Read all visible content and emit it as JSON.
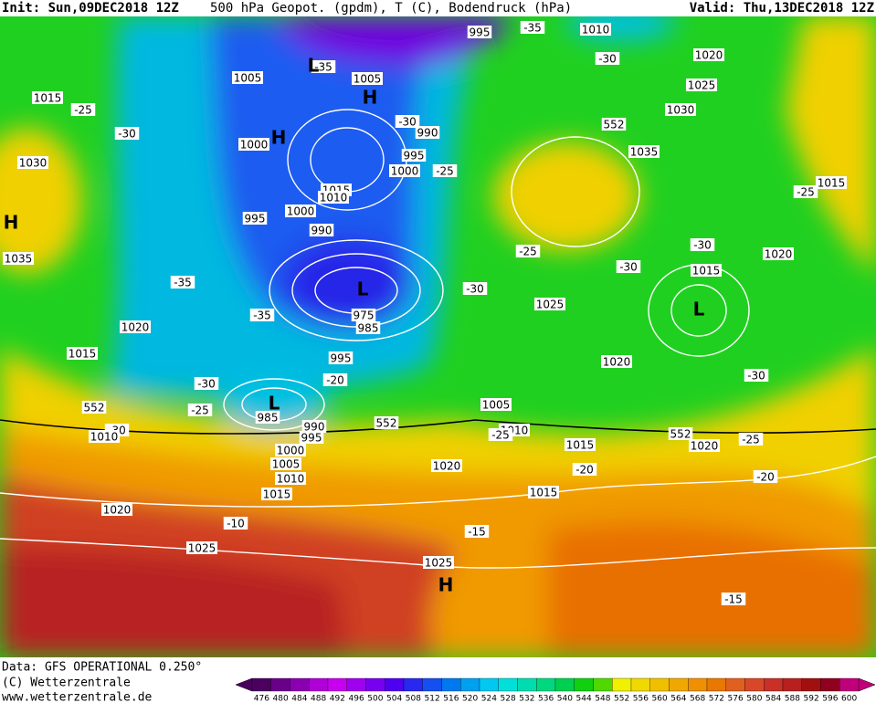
{
  "header": {
    "init": "Init: Sun,09DEC2018 12Z",
    "title": "500 hPa Geopot. (gpdm), T (C), Bodendruck (hPa)",
    "valid": "Valid: Thu,13DEC2018 12Z"
  },
  "footer": {
    "data": "Data: GFS OPERATIONAL 0.250°",
    "copyright": "(C) Wetterzentrale",
    "url": "www.wetterzentrale.de"
  },
  "map": {
    "labels": [
      "995",
      "-35",
      "1010",
      "-30",
      "1020",
      "1025",
      "1030",
      "552",
      "1035",
      "1015",
      "-25",
      "-30",
      "1020",
      "1015",
      "-30",
      "-25",
      "1025",
      "-30",
      "1020",
      "-30",
      "1005",
      "1010",
      "-25",
      "1015",
      "552",
      "1020",
      "-25",
      "-20",
      "-20",
      "1020",
      "1015",
      "-15",
      "1025",
      "-15",
      "-10",
      "1020",
      "1025",
      "1015",
      "1010",
      "1005",
      "1000",
      "995",
      "990",
      "552",
      "985",
      "-25",
      "-30",
      "-20",
      "995",
      "985",
      "975",
      "-35",
      "-35",
      "1020",
      "1015",
      "552",
      "-30",
      "1010",
      "1035",
      "1030",
      "1015",
      "-25",
      "-30",
      "1005",
      "1000",
      "995",
      "1000",
      "990",
      "1015",
      "1010",
      "1000",
      "995",
      "990",
      "-30",
      "-25",
      "1005",
      "-35"
    ],
    "centers": [
      "H",
      "H",
      "L",
      "H",
      "L",
      "L",
      "L",
      "H"
    ]
  },
  "colorbar": {
    "ticks": [
      476,
      480,
      484,
      488,
      492,
      496,
      500,
      504,
      508,
      512,
      516,
      520,
      524,
      528,
      532,
      536,
      540,
      544,
      548,
      552,
      556,
      560,
      564,
      568,
      572,
      576,
      580,
      584,
      588,
      592,
      596,
      600
    ],
    "colors": [
      "#4b0060",
      "#6a008a",
      "#8a00b0",
      "#b000d8",
      "#c800f0",
      "#a000f0",
      "#7800f0",
      "#5000f0",
      "#2828f0",
      "#1450f0",
      "#0078f0",
      "#00a0f0",
      "#00c8f0",
      "#00e0d8",
      "#00dcb0",
      "#00d880",
      "#00d050",
      "#10d010",
      "#50d800",
      "#f0f000",
      "#f0d800",
      "#f0c000",
      "#f0a800",
      "#f09000",
      "#e87800",
      "#e06020",
      "#d84828",
      "#c83028",
      "#b82020",
      "#a01010",
      "#900020",
      "#c0007a"
    ]
  }
}
